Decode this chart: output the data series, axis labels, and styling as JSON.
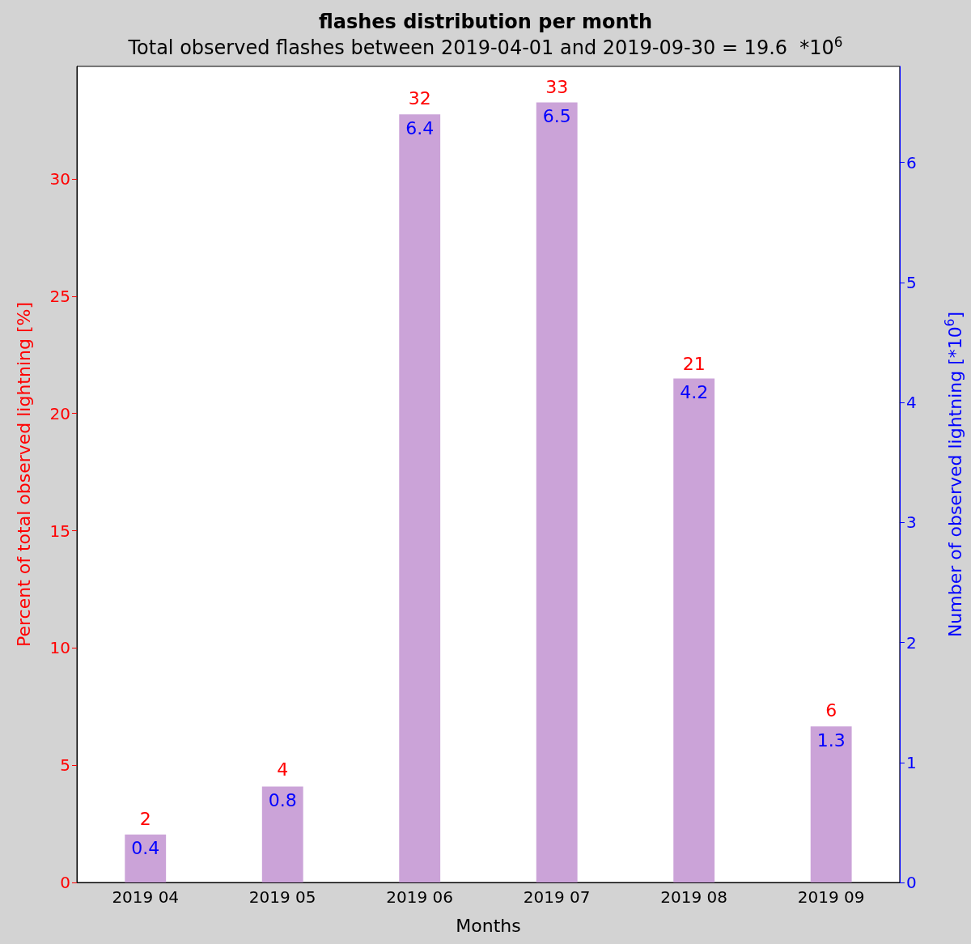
{
  "chart_data": {
    "type": "bar",
    "title": "flashes distribution per month",
    "subtitle": "Total observed flashes between 2019-04-01 and 2019-09-30 = 19.6  *10$^{6}$",
    "xlabel": "Months",
    "ylabel": "Percent of total observed lightning [%]",
    "y2label": "Number of observed lightning [*10$^{6}$]",
    "categories": [
      "2019 04",
      "2019 05",
      "2019 06",
      "2019 07",
      "2019 08",
      "2019 09"
    ],
    "series": [
      {
        "color": "#cba3d8",
        "axis": "y2",
        "values": [
          0.4,
          0.8,
          6.4,
          6.5,
          4.2,
          1.3
        ]
      }
    ],
    "data_labels": true,
    "annotations": [
      {
        "text": "2",
        "x": "2019 04",
        "y": 2.0
      },
      {
        "text": "4",
        "x": "2019 05",
        "y": 4.1
      },
      {
        "text": "32",
        "x": "2019 06",
        "y": 32.7
      },
      {
        "text": "33",
        "x": "2019 07",
        "y": 33.2
      },
      {
        "text": "21",
        "x": "2019 08",
        "y": 21.4
      },
      {
        "text": "6",
        "x": "2019 09",
        "y": 6.6
      }
    ],
    "ylim": [
      0,
      34.8
    ],
    "yticks": [
      0,
      5,
      10,
      15,
      20,
      25,
      30
    ],
    "y2lim": [
      0,
      6.8
    ],
    "y2ticks": [
      0,
      1,
      2,
      3,
      4,
      5,
      6
    ],
    "grid": false
  }
}
